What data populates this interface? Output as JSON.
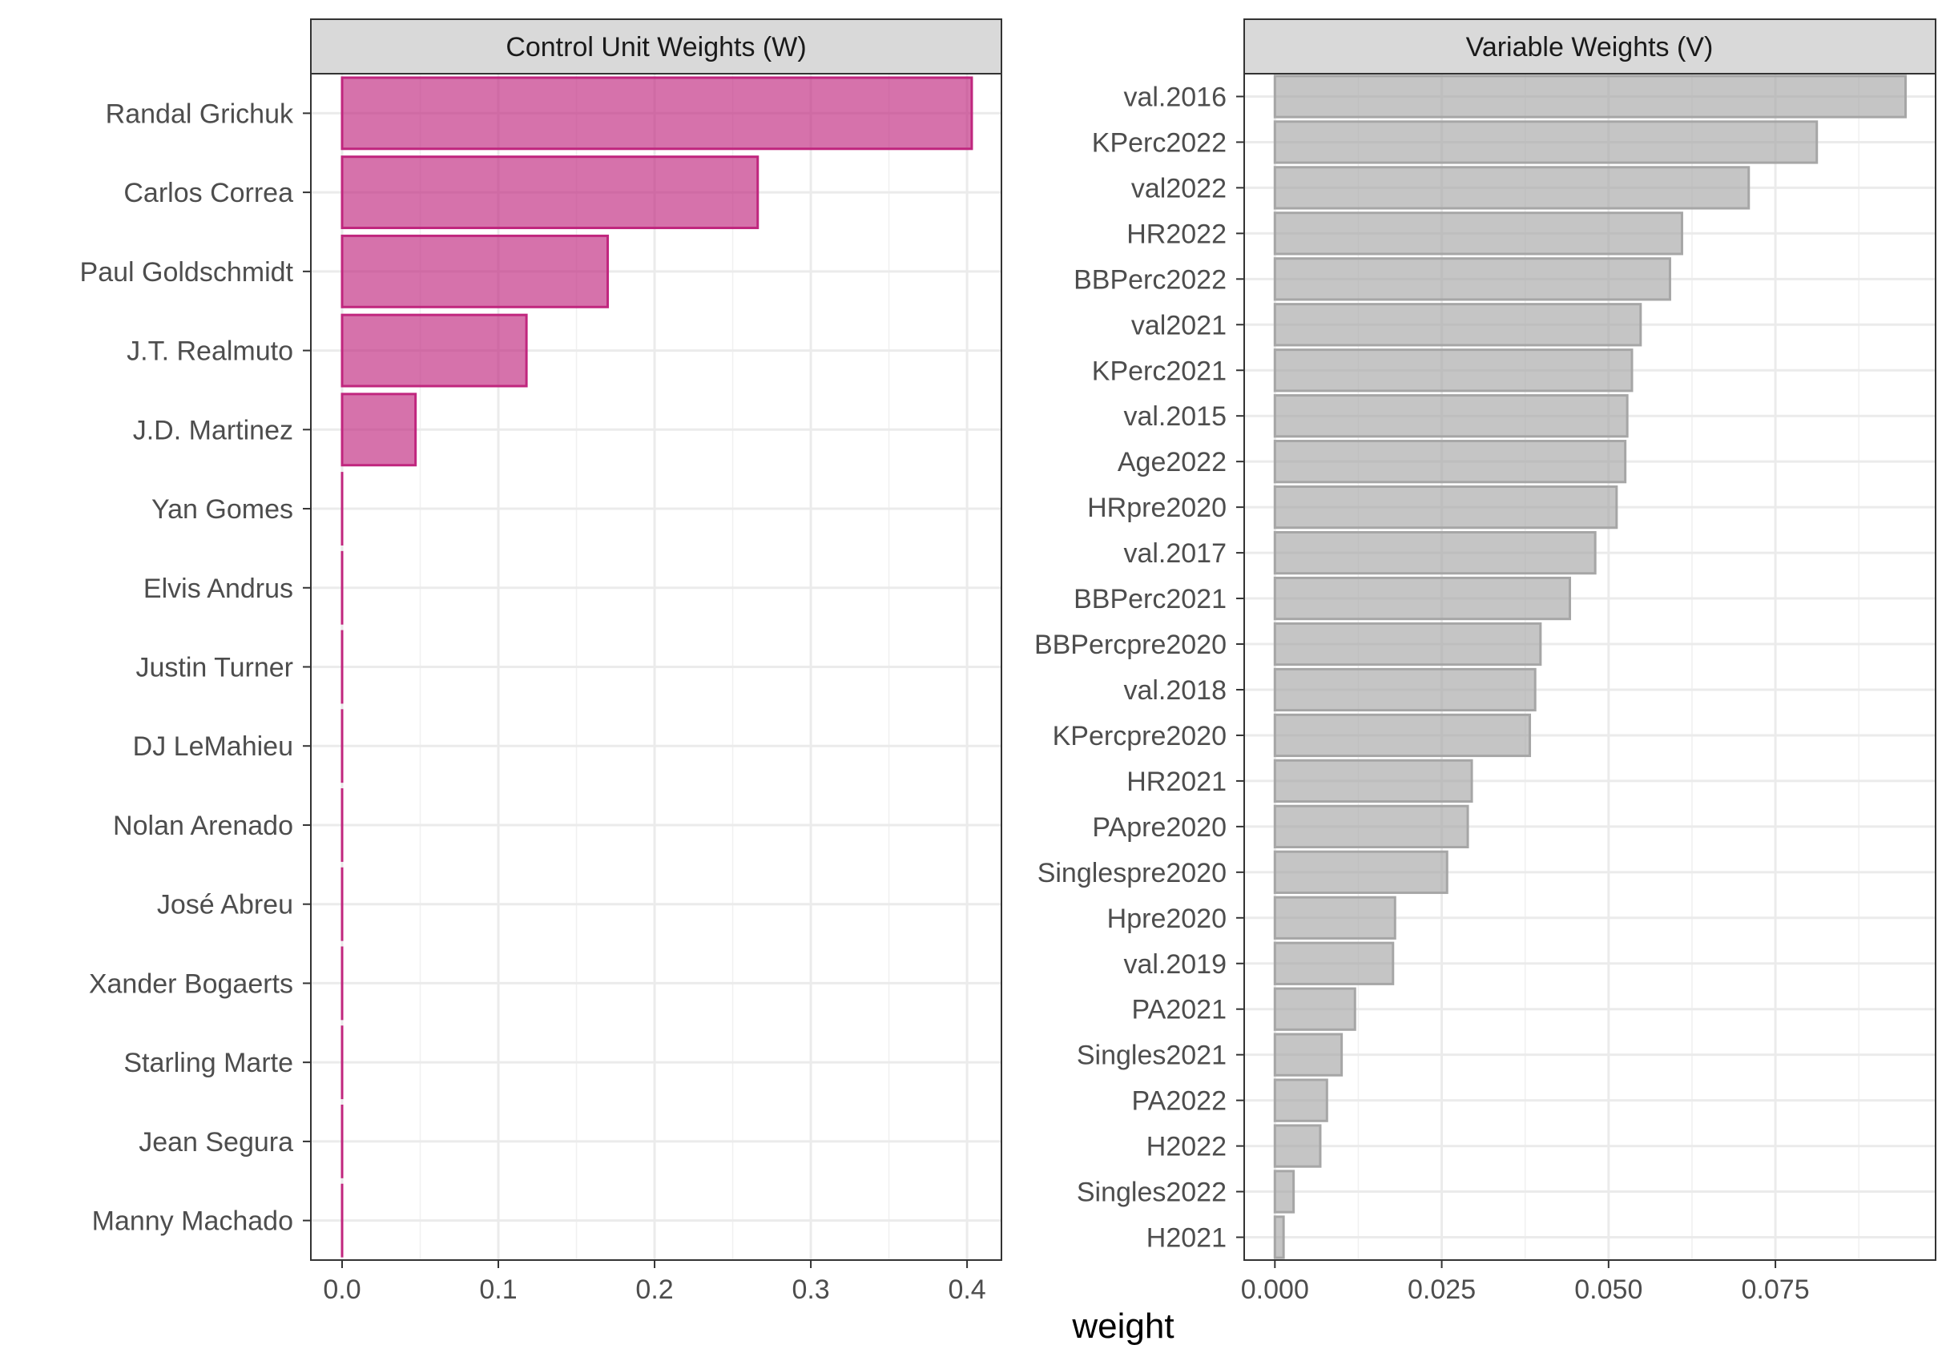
{
  "chart_data": [
    {
      "type": "bar",
      "orientation": "horizontal",
      "title": "Control Unit Weights (W)",
      "fill_color": "#C0267E",
      "categories": [
        "Randal Grichuk",
        "Carlos Correa",
        "Paul Goldschmidt",
        "J.T. Realmuto",
        "J.D. Martinez",
        "Yan Gomes",
        "Elvis Andrus",
        "Justin Turner",
        "DJ LeMahieu",
        "Nolan Arenado",
        "José Abreu",
        "Xander Bogaerts",
        "Starling Marte",
        "Jean Segura",
        "Manny Machado"
      ],
      "values": [
        0.403,
        0.266,
        0.17,
        0.118,
        0.047,
        0.0,
        0.0,
        0.0,
        0.0,
        0.0,
        0.0,
        0.0,
        0.0,
        0.0,
        0.0
      ],
      "xlim": [
        -0.02,
        0.422
      ],
      "xticks": [
        0.0,
        0.1,
        0.2,
        0.3,
        0.4
      ],
      "xtick_labels": [
        "0.0",
        "0.1",
        "0.2",
        "0.3",
        "0.4"
      ],
      "grid": true
    },
    {
      "type": "bar",
      "orientation": "horizontal",
      "title": "Variable Weights (V)",
      "fill_color": "#A6A6A6",
      "categories": [
        "val.2016",
        "KPerc2022",
        "val2022",
        "HR2022",
        "BBPerc2022",
        "val2021",
        "KPerc2021",
        "val.2015",
        "Age2022",
        "HRpre2020",
        "val.2017",
        "BBPerc2021",
        "BBPercpre2020",
        "val.2018",
        "KPercpre2020",
        "HR2021",
        "PApre2020",
        "Singlespre2020",
        "Hpre2020",
        "val.2019",
        "PA2021",
        "Singles2021",
        "PA2022",
        "H2022",
        "Singles2022",
        "H2021"
      ],
      "values": [
        0.0945,
        0.0812,
        0.071,
        0.061,
        0.0592,
        0.0548,
        0.0535,
        0.0528,
        0.0525,
        0.0512,
        0.048,
        0.0442,
        0.0398,
        0.039,
        0.0382,
        0.0295,
        0.0289,
        0.0258,
        0.018,
        0.0177,
        0.012,
        0.01,
        0.0078,
        0.0068,
        0.0028,
        0.0013
      ],
      "xlim": [
        -0.0046,
        0.099
      ],
      "xticks": [
        0.0,
        0.025,
        0.05,
        0.075
      ],
      "xtick_labels": [
        "0.000",
        "0.025",
        "0.050",
        "0.075"
      ],
      "grid": true
    }
  ],
  "xlabel": "weight"
}
